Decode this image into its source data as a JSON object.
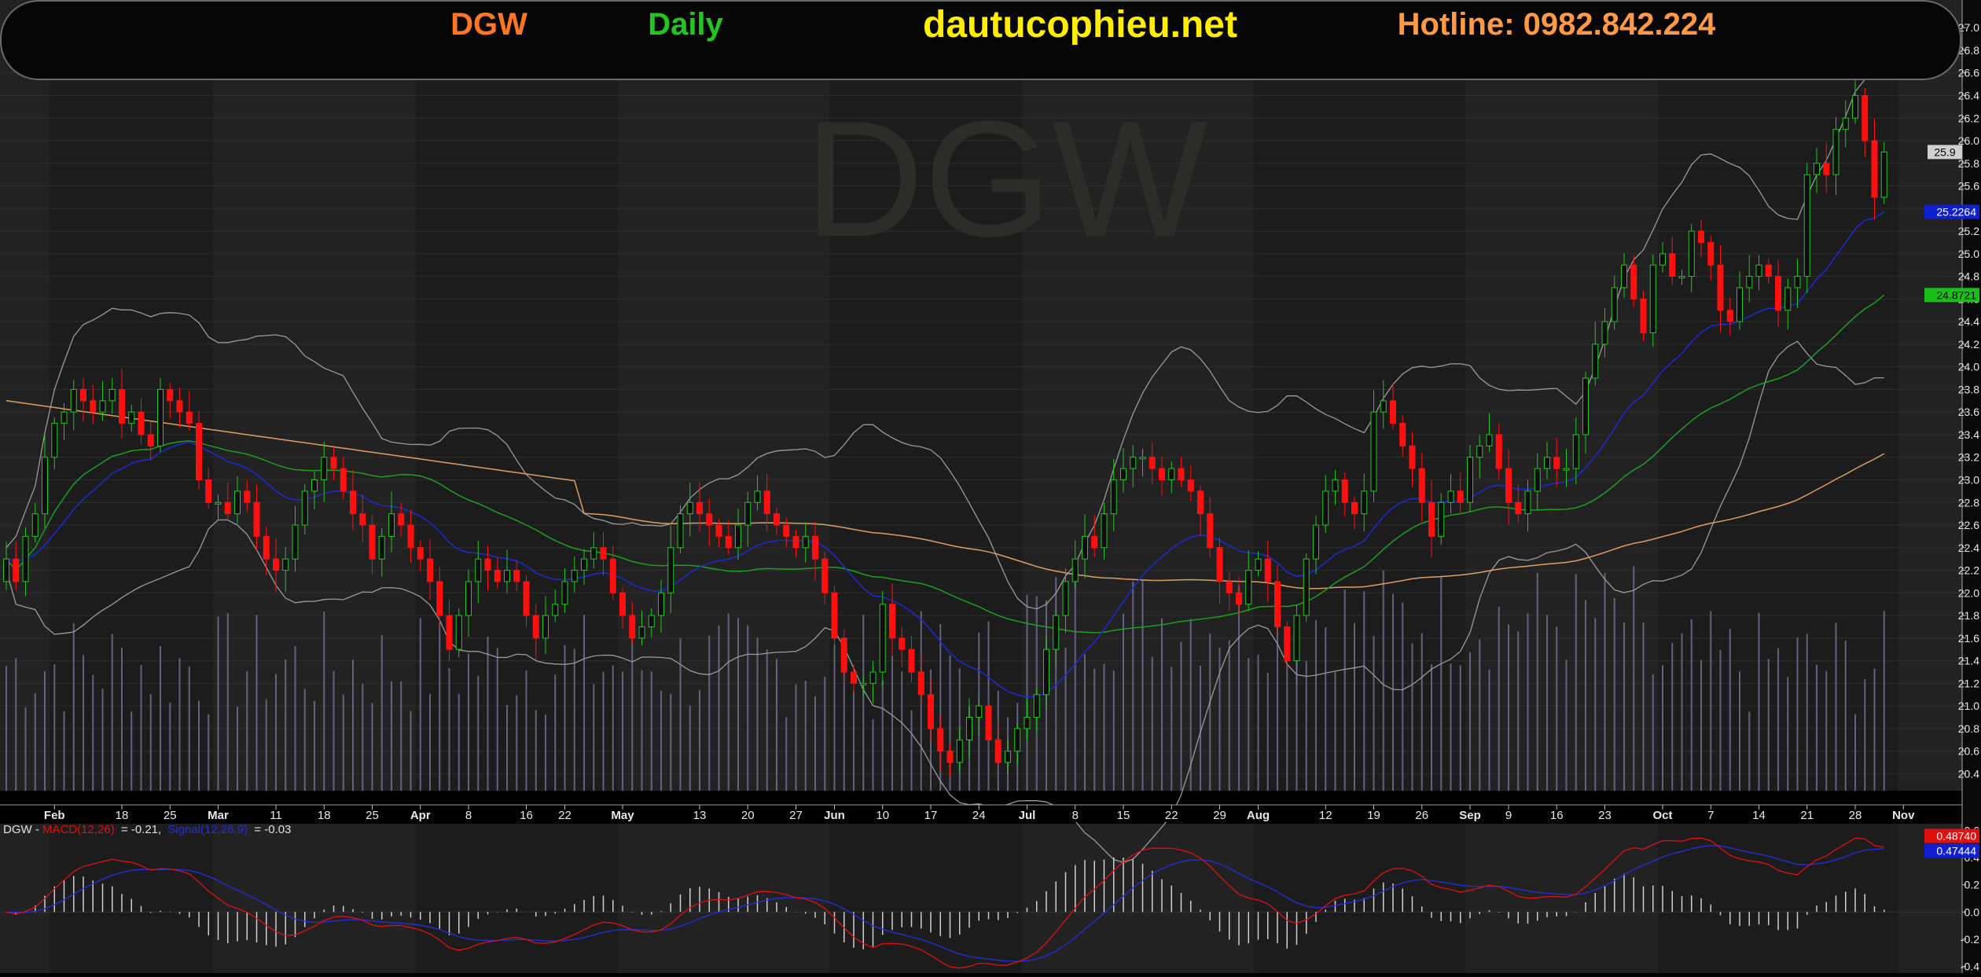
{
  "header": {
    "symbol": "DGW",
    "period": "Daily",
    "website": "dautucophieu.net",
    "hotline": "Hotline: 0982.842.224"
  },
  "watermark": "DGW",
  "colors": {
    "up": "#22c522",
    "down": "#ff1010",
    "ma_blue": "#1b2bd6",
    "ma_green": "#1e9e1e",
    "ma_orange": "#d9a066",
    "bollinger": "#9a9a9a",
    "volume": "#6f6f8f",
    "macd": "#e01010",
    "signal": "#2030e0",
    "symbol_text": "#ff7722",
    "period_text": "#22c522",
    "website_text": "#ffee00",
    "hotline_text": "#ff9944"
  },
  "chart_data": [
    {
      "type": "candlestick",
      "y_axis_ticks": [
        "27.0",
        "26.8",
        "26.6",
        "26.4",
        "26.2",
        "26.0",
        "25.8",
        "25.6",
        "25.4",
        "25.2",
        "25.0",
        "24.8",
        "24.6",
        "24.4",
        "24.2",
        "24.0",
        "23.8",
        "23.6",
        "23.4",
        "23.2",
        "23.0",
        "22.8",
        "22.6",
        "22.4",
        "22.2",
        "22.0",
        "21.8",
        "21.6",
        "21.4",
        "21.2",
        "21.0",
        "20.8",
        "20.6",
        "20.4"
      ],
      "ylim": [
        20.25,
        27.05
      ],
      "x_axis_labels": [
        {
          "label": "Feb",
          "month": true,
          "i": 5
        },
        {
          "label": "18",
          "i": 12
        },
        {
          "label": "25",
          "i": 17
        },
        {
          "label": "Mar",
          "month": true,
          "i": 22
        },
        {
          "label": "11",
          "i": 28
        },
        {
          "label": "18",
          "i": 33
        },
        {
          "label": "25",
          "i": 38
        },
        {
          "label": "Apr",
          "month": true,
          "i": 43
        },
        {
          "label": "8",
          "i": 48
        },
        {
          "label": "16",
          "i": 54
        },
        {
          "label": "22",
          "i": 58
        },
        {
          "label": "May",
          "month": true,
          "i": 64
        },
        {
          "label": "13",
          "i": 72
        },
        {
          "label": "20",
          "i": 77
        },
        {
          "label": "27",
          "i": 82
        },
        {
          "label": "Jun",
          "month": true,
          "i": 86
        },
        {
          "label": "10",
          "i": 91
        },
        {
          "label": "17",
          "i": 96
        },
        {
          "label": "24",
          "i": 101
        },
        {
          "label": "Jul",
          "month": true,
          "i": 106
        },
        {
          "label": "8",
          "i": 111
        },
        {
          "label": "15",
          "i": 116
        },
        {
          "label": "22",
          "i": 121
        },
        {
          "label": "29",
          "i": 126
        },
        {
          "label": "Aug",
          "month": true,
          "i": 130
        },
        {
          "label": "12",
          "i": 137
        },
        {
          "label": "19",
          "i": 142
        },
        {
          "label": "26",
          "i": 147
        },
        {
          "label": "Sep",
          "month": true,
          "i": 152
        },
        {
          "label": "9",
          "i": 156
        },
        {
          "label": "16",
          "i": 161
        },
        {
          "label": "23",
          "i": 166
        },
        {
          "label": "Oct",
          "month": true,
          "i": 172
        },
        {
          "label": "7",
          "i": 177
        },
        {
          "label": "14",
          "i": 182
        },
        {
          "label": "21",
          "i": 187
        },
        {
          "label": "28",
          "i": 192
        },
        {
          "label": "Nov",
          "month": true,
          "i": 197
        }
      ],
      "closes": [
        22.3,
        22.1,
        22.5,
        22.7,
        23.2,
        23.5,
        23.6,
        23.8,
        23.7,
        23.6,
        23.7,
        23.8,
        23.5,
        23.6,
        23.4,
        23.3,
        23.8,
        23.7,
        23.6,
        23.5,
        23.0,
        22.8,
        22.8,
        22.7,
        22.9,
        22.8,
        22.5,
        22.3,
        22.2,
        22.3,
        22.6,
        22.9,
        23.0,
        23.2,
        23.1,
        22.9,
        22.7,
        22.6,
        22.3,
        22.5,
        22.7,
        22.6,
        22.4,
        22.3,
        22.1,
        21.8,
        21.5,
        21.8,
        22.1,
        22.3,
        22.2,
        22.1,
        22.2,
        22.1,
        21.8,
        21.6,
        21.8,
        21.9,
        22.1,
        22.2,
        22.3,
        22.4,
        22.3,
        22.0,
        21.8,
        21.6,
        21.7,
        21.8,
        22.0,
        22.4,
        22.7,
        22.8,
        22.7,
        22.6,
        22.5,
        22.4,
        22.6,
        22.8,
        22.9,
        22.7,
        22.6,
        22.5,
        22.4,
        22.5,
        22.3,
        22.0,
        21.6,
        21.3,
        21.2,
        21.2,
        21.3,
        21.9,
        21.6,
        21.5,
        21.3,
        21.1,
        20.8,
        20.6,
        20.5,
        20.7,
        20.9,
        21.0,
        20.7,
        20.5,
        20.6,
        20.8,
        20.9,
        21.1,
        21.5,
        21.8,
        22.1,
        22.3,
        22.5,
        22.4,
        22.7,
        23.0,
        23.1,
        23.2,
        23.2,
        23.1,
        23.0,
        23.1,
        23.0,
        22.9,
        22.7,
        22.4,
        22.1,
        22.0,
        21.9,
        22.2,
        22.3,
        22.1,
        21.7,
        21.4,
        21.8,
        22.3,
        22.6,
        22.9,
        23.0,
        22.8,
        22.7,
        22.9,
        23.6,
        23.7,
        23.5,
        23.3,
        23.1,
        22.8,
        22.5,
        22.8,
        22.9,
        22.8,
        23.2,
        23.3,
        23.4,
        23.1,
        22.8,
        22.7,
        22.9,
        23.1,
        23.2,
        23.1,
        23.1,
        23.4,
        23.9,
        24.2,
        24.4,
        24.7,
        24.9,
        24.6,
        24.3,
        24.9,
        25.0,
        24.8,
        24.8,
        25.2,
        25.1,
        24.9,
        24.5,
        24.4,
        24.7,
        24.8,
        24.9,
        24.8,
        24.5,
        24.7,
        24.8,
        25.7,
        25.8,
        25.7,
        26.1,
        26.2,
        26.4,
        26.0,
        25.5,
        25.9
      ],
      "overlays": [
        "Blue moving average",
        "Green moving average",
        "Orange moving average",
        "Bollinger bands",
        "Volume"
      ],
      "last_price_label": "25.9",
      "blue_ma_label": "25.2264",
      "green_ma_label": "24.8721"
    },
    {
      "type": "line",
      "legend": {
        "symbol": "DGW",
        "macd_name": "MACD(12,26)",
        "macd_value": "= -0.21,",
        "signal_name": "Signal(12,26,9)",
        "signal_value": "= -0.03"
      },
      "y_axis_ticks": [
        "0.6",
        "0.4",
        "0.2",
        "0.0",
        "-0.2",
        "-0.4"
      ],
      "ylim": [
        -0.45,
        0.65
      ],
      "macd_label": "0.48740",
      "signal_label": "0.47444"
    }
  ]
}
